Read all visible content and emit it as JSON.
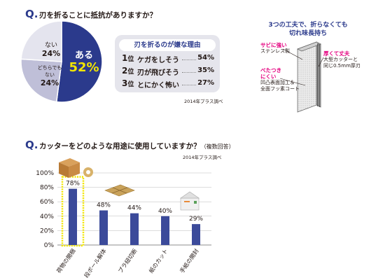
{
  "q1": {
    "mark": "Q.",
    "question": "刃を折ることに抵抗がありますか？",
    "source": "2014年プラス調べ",
    "pie": {
      "slices": [
        {
          "label": "ある",
          "value": 52,
          "display": "52%",
          "color": "#2b3a8c"
        },
        {
          "label": "どちらでもない",
          "label_line1": "どちらでも",
          "label_line2": "ない",
          "value": 24,
          "display": "24%",
          "color": "#bfbfd8"
        },
        {
          "label": "ない",
          "value": 24,
          "display": "24%",
          "color": "#e4e4ee"
        }
      ]
    },
    "reasons": {
      "title": "刃を折るのが嫌な理由",
      "items": [
        {
          "rank": "1",
          "rank_suffix": "位",
          "text": "ケガをしそう",
          "pct": "54%"
        },
        {
          "rank": "2",
          "rank_suffix": "位",
          "text": "刃が飛びそう",
          "pct": "35%"
        },
        {
          "rank": "3",
          "rank_suffix": "位",
          "text": "とにかく怖い",
          "pct": "27%"
        }
      ]
    }
  },
  "features": {
    "title_line1": "3つの工夫で、折らなくても",
    "title_line2": "切れ味長持ち",
    "rust": {
      "pink": "サビに強い",
      "black": "ステンレス製"
    },
    "thick": {
      "pink": "厚くて丈夫",
      "black1": "大型カッターと",
      "black2": "同じ0.5mm厚刃"
    },
    "sticky": {
      "pink1": "べたつき",
      "pink2": "にくい",
      "black1": "凹凸表面加工＆",
      "black2": "全面フッ素コート"
    }
  },
  "q2": {
    "mark": "Q.",
    "question": "カッターをどのような用途に使用していますか？",
    "question_note": "（複数回答）",
    "source": "2014年プラス調べ"
  },
  "chart_data": {
    "type": "bar",
    "categories": [
      "荷物の開梱",
      "段ボール解体",
      "プラ紐切断",
      "紙のカット",
      "手紙の開封"
    ],
    "values": [
      78,
      48,
      44,
      40,
      29
    ],
    "data_labels": [
      "78%",
      "48%",
      "44%",
      "40%",
      "29%"
    ],
    "y_ticks": [
      "0%",
      "20%",
      "40%",
      "60%",
      "80%",
      "100%"
    ],
    "ylim": [
      0,
      100
    ],
    "highlight_index": 0,
    "bar_color": "#3b4a9a",
    "highlight_color": "#f2e600"
  },
  "colors": {
    "accent": "#2b3a8c",
    "pink": "#e4007f",
    "panel": "#e5e5ec"
  }
}
